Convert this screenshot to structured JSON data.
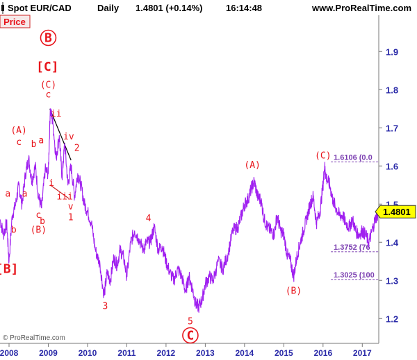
{
  "header": {
    "instrument": "Spot EUR/CAD",
    "period": "Daily",
    "quote": "1.4801 (+0.14%)",
    "time": "16:14:48",
    "website": "www.ProRealTime.com"
  },
  "price_tab": "Price",
  "copyright": "© ProRealTime.com",
  "colors": {
    "price_line": "#a020f0",
    "wave_labels": "#e8141b",
    "fib_lines": "#7a3db0",
    "axis_text": "#2a2aa8",
    "last_price_box": "#ffff00"
  },
  "icons": {
    "header": "candlestick-icon"
  },
  "chart_data": {
    "type": "line",
    "title": "Spot EUR/CAD Daily",
    "xlabel": "",
    "ylabel": "",
    "ylim": [
      1.135,
      1.995
    ],
    "x_range": [
      2007.77,
      2017.42
    ],
    "grid": false,
    "y_ticks": [
      "1.2",
      "1.3",
      "1.4",
      "1.5",
      "1.6",
      "1.7",
      "1.8",
      "1.9"
    ],
    "x_ticks": [
      "2008",
      "2009",
      "2010",
      "2011",
      "2012",
      "2013",
      "2014",
      "2015",
      "2016",
      "2017"
    ],
    "last_price": "1.4801",
    "series": [
      {
        "x": [
          2007.77,
          2007.86,
          2007.94,
          2008.0,
          2008.08,
          2008.17,
          2008.25,
          2008.33,
          2008.42,
          2008.5,
          2008.58,
          2008.67,
          2008.75,
          2008.83,
          2008.92,
          2009.0,
          2009.05,
          2009.12,
          2009.2,
          2009.28,
          2009.35,
          2009.42,
          2009.5,
          2009.58,
          2009.67,
          2009.75,
          2009.83,
          2009.92,
          2010.0,
          2010.1,
          2010.2,
          2010.32,
          2010.42,
          2010.5,
          2010.58,
          2010.67,
          2010.75,
          2010.83,
          2010.92,
          2011.0,
          2011.1,
          2011.2,
          2011.3,
          2011.42,
          2011.5,
          2011.6,
          2011.7,
          2011.8,
          2011.9,
          2012.0,
          2012.1,
          2012.2,
          2012.3,
          2012.4,
          2012.5,
          2012.58,
          2012.67,
          2012.75,
          2012.83,
          2012.92,
          2013.0,
          2013.1,
          2013.2,
          2013.33,
          2013.45,
          2013.58,
          2013.7,
          2013.83,
          2013.92,
          2014.0,
          2014.08,
          2014.17,
          2014.25,
          2014.33,
          2014.42,
          2014.5,
          2014.58,
          2014.67,
          2014.75,
          2014.83,
          2014.92,
          2015.0,
          2015.08,
          2015.17,
          2015.25,
          2015.33,
          2015.42,
          2015.5,
          2015.58,
          2015.67,
          2015.75,
          2015.83,
          2015.92,
          2016.0,
          2016.04,
          2016.08,
          2016.17,
          2016.25,
          2016.33,
          2016.42,
          2016.5,
          2016.58,
          2016.67,
          2016.75,
          2016.83,
          2016.92,
          2017.0,
          2017.08,
          2017.17,
          2017.25,
          2017.33,
          2017.42
        ],
        "values": [
          1.46,
          1.42,
          1.45,
          1.35,
          1.47,
          1.5,
          1.55,
          1.5,
          1.58,
          1.62,
          1.56,
          1.6,
          1.52,
          1.49,
          1.59,
          1.58,
          1.75,
          1.71,
          1.62,
          1.68,
          1.57,
          1.66,
          1.55,
          1.6,
          1.52,
          1.58,
          1.55,
          1.5,
          1.48,
          1.45,
          1.38,
          1.34,
          1.26,
          1.32,
          1.3,
          1.36,
          1.34,
          1.38,
          1.36,
          1.31,
          1.4,
          1.43,
          1.41,
          1.38,
          1.4,
          1.4,
          1.44,
          1.38,
          1.39,
          1.35,
          1.32,
          1.3,
          1.33,
          1.31,
          1.27,
          1.31,
          1.28,
          1.24,
          1.23,
          1.25,
          1.29,
          1.31,
          1.3,
          1.35,
          1.33,
          1.37,
          1.43,
          1.44,
          1.47,
          1.5,
          1.51,
          1.54,
          1.56,
          1.52,
          1.51,
          1.46,
          1.44,
          1.43,
          1.42,
          1.47,
          1.43,
          1.42,
          1.37,
          1.35,
          1.31,
          1.36,
          1.4,
          1.43,
          1.46,
          1.5,
          1.52,
          1.45,
          1.48,
          1.55,
          1.6,
          1.57,
          1.55,
          1.51,
          1.49,
          1.47,
          1.47,
          1.45,
          1.44,
          1.46,
          1.43,
          1.42,
          1.43,
          1.42,
          1.4,
          1.43,
          1.46,
          1.48
        ]
      }
    ],
    "fib_levels": [
      {
        "value": 1.6106,
        "label": "1.6106 (0.0"
      },
      {
        "value": 1.3752,
        "label": "1.3752 (76"
      },
      {
        "value": 1.3025,
        "label": "1.3025 (100"
      }
    ],
    "trendlines": [
      {
        "color": "#000000",
        "from": [
          2009.04,
          1.75
        ],
        "to": [
          2009.58,
          1.615
        ]
      },
      {
        "color": "#cc2222",
        "from": [
          2009.05,
          1.55
        ],
        "to": [
          2009.52,
          1.515
        ]
      }
    ],
    "annotations": [
      {
        "text": "B",
        "x": 2009.0,
        "y": 1.925,
        "circled": true,
        "size": "big"
      },
      {
        "text": "[C]",
        "x": 2008.98,
        "y": 1.85,
        "size": "big"
      },
      {
        "text": "(C)",
        "x": 2009.0,
        "y": 1.805,
        "size": "normal"
      },
      {
        "text": "c",
        "x": 2009.0,
        "y": 1.78,
        "size": "normal"
      },
      {
        "text": "ii",
        "x": 2009.2,
        "y": 1.73,
        "size": "normal"
      },
      {
        "text": "iv",
        "x": 2009.52,
        "y": 1.67,
        "size": "normal"
      },
      {
        "text": "2",
        "x": 2009.73,
        "y": 1.64,
        "size": "normal"
      },
      {
        "text": "(A)",
        "x": 2008.25,
        "y": 1.686,
        "size": "normal"
      },
      {
        "text": "c",
        "x": 2008.25,
        "y": 1.655,
        "size": "normal"
      },
      {
        "text": "b",
        "x": 2008.63,
        "y": 1.65,
        "size": "normal"
      },
      {
        "text": "a",
        "x": 2008.82,
        "y": 1.66,
        "size": "normal"
      },
      {
        "text": "a",
        "x": 2008.4,
        "y": 1.52,
        "size": "normal"
      },
      {
        "text": "a",
        "x": 2007.97,
        "y": 1.52,
        "size": "normal"
      },
      {
        "text": "b",
        "x": 2008.12,
        "y": 1.425,
        "size": "normal"
      },
      {
        "text": "i",
        "x": 2009.08,
        "y": 1.548,
        "size": "normal"
      },
      {
        "text": "iii",
        "x": 2009.42,
        "y": 1.512,
        "size": "normal"
      },
      {
        "text": "v",
        "x": 2009.57,
        "y": 1.486,
        "size": "normal"
      },
      {
        "text": "1",
        "x": 2009.57,
        "y": 1.458,
        "size": "normal"
      },
      {
        "text": "c",
        "x": 2008.75,
        "y": 1.464,
        "size": "normal"
      },
      {
        "text": "b",
        "x": 2008.85,
        "y": 1.448,
        "size": "normal"
      },
      {
        "text": "(B)",
        "x": 2008.75,
        "y": 1.425,
        "size": "normal"
      },
      {
        "text": "[B]",
        "x": 2007.95,
        "y": 1.32,
        "size": "big"
      },
      {
        "text": "3",
        "x": 2010.45,
        "y": 1.225,
        "size": "normal"
      },
      {
        "text": "4",
        "x": 2011.55,
        "y": 1.455,
        "size": "normal"
      },
      {
        "text": "5",
        "x": 2012.62,
        "y": 1.185,
        "size": "normal"
      },
      {
        "text": "C",
        "x": 2012.62,
        "y": 1.145,
        "circled": true,
        "size": "big"
      },
      {
        "text": "(A)",
        "x": 2014.2,
        "y": 1.595,
        "size": "normal"
      },
      {
        "text": "(B)",
        "x": 2015.25,
        "y": 1.265,
        "size": "normal"
      },
      {
        "text": "(C)",
        "x": 2016.0,
        "y": 1.62,
        "size": "normal"
      }
    ]
  }
}
